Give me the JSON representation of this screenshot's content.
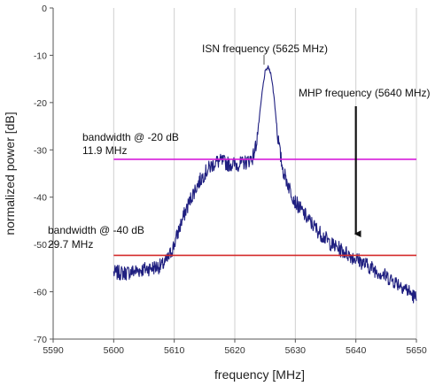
{
  "chart_data": {
    "type": "line",
    "xlabel": "frequency  [MHz]",
    "ylabel": "normalized power [dB]",
    "xlim": [
      5590,
      5650
    ],
    "ylim": [
      -70,
      0
    ],
    "x_ticks": [
      5590,
      5600,
      5610,
      5620,
      5630,
      5640,
      5650
    ],
    "y_ticks": [
      0,
      -10,
      -20,
      -30,
      -40,
      -50,
      -60,
      -70
    ],
    "grid": "x-major-only",
    "series": [
      {
        "color": "#1f1f80",
        "noise_db": 1.6,
        "x": [
          5600.0,
          5602.0,
          5604.0,
          5606.0,
          5608.0,
          5609.0,
          5610.0,
          5611.0,
          5612.0,
          5613.0,
          5614.0,
          5615.0,
          5616.0,
          5617.0,
          5618.0,
          5619.0,
          5620.0,
          5621.0,
          5622.0,
          5623.0,
          5623.5,
          5624.0,
          5624.5,
          5625.0,
          5625.5,
          5626.0,
          5626.5,
          5627.0,
          5627.5,
          5628.0,
          5629.0,
          5630.0,
          5632.0,
          5634.0,
          5636.0,
          5638.0,
          5640.0,
          5642.0,
          5644.0,
          5646.0,
          5648.0,
          5650.0
        ],
        "y": [
          -56.0,
          -56.0,
          -55.5,
          -55.0,
          -54.5,
          -53.0,
          -50.0,
          -46.0,
          -42.5,
          -39.5,
          -37.0,
          -35.0,
          -33.5,
          -32.5,
          -32.5,
          -33.0,
          -33.0,
          -33.0,
          -32.5,
          -31.5,
          -29.0,
          -24.0,
          -18.0,
          -13.5,
          -12.5,
          -14.0,
          -19.0,
          -26.0,
          -31.0,
          -34.5,
          -38.0,
          -41.0,
          -44.5,
          -47.5,
          -50.0,
          -51.5,
          -53.0,
          -54.5,
          -56.0,
          -57.5,
          -59.0,
          -61.5
        ]
      }
    ],
    "reference_lines": [
      {
        "y": -32.0,
        "x_range": [
          5600,
          5650
        ],
        "color": "#d61ddb"
      },
      {
        "y": -52.3,
        "x_range": [
          5600,
          5650
        ],
        "color": "#d42b2b"
      }
    ],
    "annotations": [
      {
        "text": "ISN frequency (5625 MHz)"
      },
      {
        "text": "MHP frequency (5640 MHz)",
        "arrow_target": {
          "x": 5640,
          "y": -48.5
        }
      },
      {
        "text": "bandwidth @ -20 dB"
      },
      {
        "text": "11.9 MHz"
      },
      {
        "text": "bandwidth @ -40 dB"
      },
      {
        "text": "29.7 MHz"
      }
    ]
  }
}
